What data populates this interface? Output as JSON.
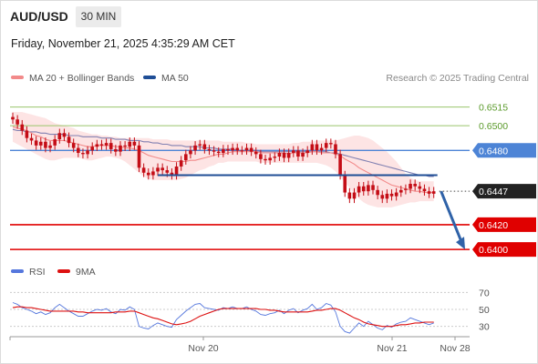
{
  "header": {
    "symbol": "AUD/USD",
    "interval": "30 MIN",
    "datetime": "Friday, November 21, 2025 4:35:29 AM CET"
  },
  "legend": {
    "ma20_label": "MA 20 + Bollinger Bands",
    "ma50_label": "MA 50",
    "credit": "Research © 2025 Trading Central",
    "rsi_label": "RSI",
    "rsi_ma_label": "9MA"
  },
  "colors": {
    "ma20": "#f28a8a",
    "ma50": "#1f4e96",
    "bollinger_fill": "#fde4e4",
    "resistance_green": "#9ac56b",
    "pivot_blue": "#4d84d6",
    "support_red": "#e00000",
    "candle": "#c40d16",
    "rsi": "#5577dd",
    "rsi_ma": "#dd1111",
    "arrow": "#2f62a8"
  },
  "chart_data": [
    {
      "type": "candlestick",
      "title": "AUD/USD",
      "interval": "30 MIN",
      "x_ticks": [
        "Nov 20",
        "Nov 21",
        "Nov 28"
      ],
      "ylim": [
        0.6392,
        0.6528
      ],
      "price_levels": [
        {
          "label": "0.6515",
          "value": 0.6515,
          "style": "resistance"
        },
        {
          "label": "0.6500",
          "value": 0.65,
          "style": "resistance"
        },
        {
          "label": "0.6480",
          "value": 0.648,
          "style": "pivot"
        },
        {
          "label": "0.6447",
          "value": 0.6447,
          "style": "last"
        },
        {
          "label": "0.6420",
          "value": 0.642,
          "style": "support"
        },
        {
          "label": "0.6400",
          "value": 0.64,
          "style": "support"
        }
      ],
      "target_arrow": {
        "from": 0.6447,
        "to": 0.64
      },
      "close": [
        0.6505,
        0.6501,
        0.6496,
        0.649,
        0.6488,
        0.6484,
        0.6487,
        0.6482,
        0.6484,
        0.6489,
        0.6494,
        0.6491,
        0.6486,
        0.6482,
        0.6478,
        0.6477,
        0.648,
        0.6483,
        0.6485,
        0.6484,
        0.6486,
        0.6481,
        0.6479,
        0.6484,
        0.6483,
        0.6487,
        0.6484,
        0.6466,
        0.6462,
        0.646,
        0.6463,
        0.6466,
        0.6464,
        0.6462,
        0.646,
        0.6467,
        0.6472,
        0.6477,
        0.648,
        0.6484,
        0.6485,
        0.6481,
        0.648,
        0.6479,
        0.6478,
        0.6481,
        0.648,
        0.6482,
        0.648,
        0.648,
        0.6482,
        0.6479,
        0.6477,
        0.6473,
        0.6472,
        0.6474,
        0.6475,
        0.6478,
        0.6474,
        0.6478,
        0.648,
        0.6475,
        0.6478,
        0.648,
        0.6485,
        0.648,
        0.6482,
        0.6486,
        0.6485,
        0.6477,
        0.646,
        0.6446,
        0.6441,
        0.6446,
        0.6451,
        0.6447,
        0.6452,
        0.6448,
        0.6444,
        0.6441,
        0.6445,
        0.6443,
        0.6446,
        0.6448,
        0.6449,
        0.6453,
        0.6451,
        0.6449,
        0.6447,
        0.6445,
        0.6447
      ],
      "ma20": [
        0.6499,
        0.6498,
        0.6497,
        0.6496,
        0.6494,
        0.6492,
        0.6491,
        0.6489,
        0.6488,
        0.6488,
        0.6488,
        0.6488,
        0.6487,
        0.6486,
        0.6485,
        0.6484,
        0.6483,
        0.6483,
        0.6484,
        0.6484,
        0.6484,
        0.6484,
        0.6483,
        0.6483,
        0.6482,
        0.6482,
        0.6481,
        0.648,
        0.6478,
        0.6476,
        0.6475,
        0.6474,
        0.6473,
        0.6472,
        0.6471,
        0.6471,
        0.6471,
        0.6471,
        0.6472,
        0.6472,
        0.6473,
        0.6474,
        0.6475,
        0.6476,
        0.6477,
        0.6477,
        0.6478,
        0.6479,
        0.6479,
        0.6479,
        0.6479,
        0.6479,
        0.6479,
        0.6478,
        0.6478,
        0.6478,
        0.6478,
        0.6478,
        0.6478,
        0.6477,
        0.6478,
        0.6478,
        0.6478,
        0.6478,
        0.6479,
        0.6479,
        0.6478,
        0.6478,
        0.6478,
        0.6477,
        0.6476,
        0.6473,
        0.6471,
        0.6469,
        0.6466,
        0.6464,
        0.6462,
        0.646,
        0.6458,
        0.6456,
        0.6454,
        0.6452,
        0.6451,
        0.645,
        0.6449,
        0.6448,
        0.6447,
        0.6447,
        0.6446,
        0.6446,
        0.6446
      ],
      "bb_upper": [
        0.6511,
        0.6511,
        0.6511,
        0.651,
        0.6509,
        0.6508,
        0.6507,
        0.6506,
        0.6504,
        0.6502,
        0.6501,
        0.65,
        0.6499,
        0.6498,
        0.6496,
        0.6495,
        0.6494,
        0.6493,
        0.6493,
        0.6492,
        0.6492,
        0.6491,
        0.6491,
        0.649,
        0.649,
        0.649,
        0.649,
        0.649,
        0.649,
        0.649,
        0.6489,
        0.6489,
        0.6489,
        0.6489,
        0.6488,
        0.6488,
        0.6488,
        0.6488,
        0.6488,
        0.6488,
        0.6488,
        0.6488,
        0.6488,
        0.6488,
        0.6488,
        0.6487,
        0.6487,
        0.6487,
        0.6487,
        0.6487,
        0.6486,
        0.6486,
        0.6485,
        0.6485,
        0.6485,
        0.6485,
        0.6485,
        0.6485,
        0.6485,
        0.6485,
        0.6486,
        0.6486,
        0.6487,
        0.6487,
        0.6487,
        0.6488,
        0.6488,
        0.6488,
        0.6488,
        0.6488,
        0.6489,
        0.649,
        0.6491,
        0.6492,
        0.6492,
        0.6491,
        0.649,
        0.6488,
        0.6485,
        0.6482,
        0.6479,
        0.6475,
        0.6471,
        0.6466,
        0.6461,
        0.6458,
        0.6456,
        0.6455,
        0.6455,
        0.6455,
        0.6455
      ],
      "bb_lower": [
        0.6487,
        0.6485,
        0.6483,
        0.6481,
        0.6479,
        0.6477,
        0.6475,
        0.6473,
        0.6472,
        0.6472,
        0.6473,
        0.6474,
        0.6474,
        0.6474,
        0.6474,
        0.6473,
        0.6472,
        0.6472,
        0.6473,
        0.6474,
        0.6475,
        0.6475,
        0.6474,
        0.6473,
        0.6471,
        0.6468,
        0.6465,
        0.6462,
        0.6459,
        0.6457,
        0.6456,
        0.6456,
        0.6456,
        0.6456,
        0.6456,
        0.6456,
        0.6457,
        0.6458,
        0.646,
        0.6462,
        0.6464,
        0.6465,
        0.6467,
        0.6468,
        0.647,
        0.647,
        0.6471,
        0.6471,
        0.6471,
        0.6471,
        0.6471,
        0.6471,
        0.6471,
        0.647,
        0.647,
        0.647,
        0.647,
        0.647,
        0.647,
        0.647,
        0.647,
        0.647,
        0.647,
        0.647,
        0.647,
        0.647,
        0.6469,
        0.6468,
        0.6466,
        0.6463,
        0.6459,
        0.6454,
        0.645,
        0.6445,
        0.6441,
        0.6438,
        0.6436,
        0.6435,
        0.6434,
        0.6434,
        0.6434,
        0.6434,
        0.6435,
        0.6436,
        0.6437,
        0.6438,
        0.6438,
        0.6439,
        0.6439,
        0.6439,
        0.6439
      ],
      "ma50": [
        0.6497,
        0.6496,
        0.6496,
        0.6495,
        0.6495,
        0.6495,
        0.6494,
        0.6494,
        0.6493,
        0.6493,
        0.6493,
        0.6493,
        0.6492,
        0.6492,
        0.6492,
        0.6491,
        0.6491,
        0.6491,
        0.6491,
        0.649,
        0.649,
        0.649,
        0.6489,
        0.6489,
        0.6489,
        0.6488,
        0.6488,
        0.6488,
        0.6487,
        0.6487,
        0.6486,
        0.6486,
        0.6485,
        0.6485,
        0.6484,
        0.6484,
        0.6484,
        0.6483,
        0.6483,
        0.6483,
        0.6483,
        0.6482,
        0.6482,
        0.6482,
        0.6481,
        0.6481,
        0.6481,
        0.6481,
        0.648,
        0.648,
        0.648,
        0.648,
        0.648,
        0.6479,
        0.6479,
        0.6479,
        0.6479,
        0.6479,
        0.6479,
        0.6479,
        0.6479,
        0.6479,
        0.6479,
        0.6479,
        0.6479,
        0.6479,
        0.6479,
        0.6479,
        0.6478,
        0.6478,
        0.6477,
        0.6476,
        0.6475,
        0.6474,
        0.6473,
        0.6472,
        0.6471,
        0.647,
        0.6469,
        0.6468,
        0.6467,
        0.6466,
        0.6465,
        0.6464,
        0.6463,
        0.6462,
        0.6461,
        0.646,
        0.646,
        0.6459,
        0.6459
      ],
      "ma50_extension_level": 0.646
    },
    {
      "type": "line",
      "title": "RSI",
      "ylim": [
        20,
        80
      ],
      "y_ticks": [
        "70",
        "50",
        "30"
      ],
      "series": [
        {
          "name": "RSI",
          "values": [
            58,
            56,
            52,
            50,
            48,
            45,
            47,
            44,
            46,
            52,
            56,
            52,
            48,
            45,
            42,
            42,
            45,
            48,
            50,
            49,
            51,
            47,
            45,
            50,
            49,
            53,
            50,
            30,
            28,
            27,
            31,
            34,
            32,
            30,
            29,
            38,
            43,
            48,
            52,
            56,
            57,
            52,
            51,
            50,
            49,
            52,
            51,
            53,
            51,
            51,
            53,
            50,
            48,
            44,
            43,
            45,
            46,
            49,
            45,
            49,
            51,
            46,
            49,
            51,
            56,
            50,
            52,
            57,
            55,
            47,
            30,
            24,
            22,
            28,
            34,
            30,
            36,
            32,
            28,
            26,
            31,
            29,
            33,
            35,
            36,
            40,
            38,
            36,
            34,
            32,
            34
          ]
        },
        {
          "name": "9MA",
          "values": [
            52,
            53,
            53,
            52,
            52,
            51,
            50,
            49,
            48,
            48,
            48,
            48,
            48,
            48,
            47,
            47,
            46,
            46,
            46,
            46,
            46,
            46,
            47,
            47,
            47,
            48,
            48,
            46,
            44,
            42,
            40,
            39,
            37,
            35,
            33,
            32,
            33,
            34,
            36,
            39,
            42,
            44,
            46,
            48,
            50,
            51,
            51,
            51,
            51,
            51,
            51,
            51,
            51,
            50,
            50,
            49,
            49,
            48,
            47,
            47,
            47,
            47,
            47,
            47,
            48,
            49,
            49,
            50,
            51,
            51,
            49,
            46,
            43,
            40,
            38,
            35,
            33,
            32,
            31,
            30,
            30,
            30,
            31,
            32,
            32,
            33,
            34,
            34,
            35,
            35,
            35
          ]
        }
      ]
    }
  ]
}
